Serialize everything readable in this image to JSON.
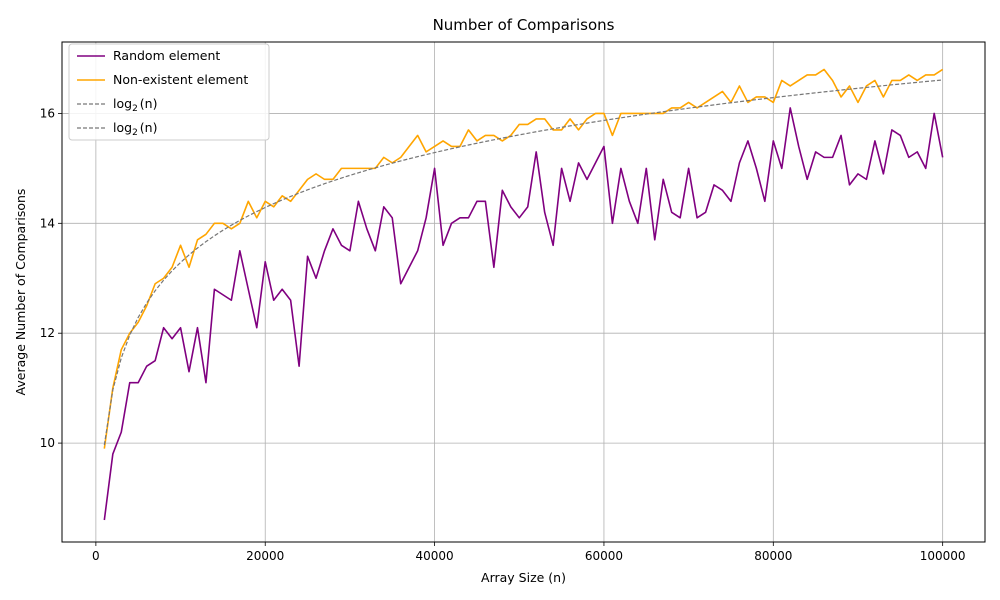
{
  "chart_data": {
    "type": "line",
    "title": "Number of Comparisons",
    "xlabel": "Array Size (n)",
    "ylabel": "Average Number of Comparisons",
    "xlim": [
      -4000,
      105000
    ],
    "ylim": [
      8.2,
      17.3
    ],
    "xticks": [
      0,
      20000,
      40000,
      60000,
      80000,
      100000
    ],
    "yticks": [
      10,
      12,
      14,
      16
    ],
    "grid": true,
    "legend_position": "top-left",
    "legend": [
      {
        "label": "Random element",
        "color": "#800080",
        "style": "solid"
      },
      {
        "label": "Non-existent element",
        "color": "#ffa500",
        "style": "solid"
      },
      {
        "label": "log",
        "sub": "2",
        "suffix": "(n)",
        "color": "#777777",
        "style": "dashed"
      },
      {
        "label": "log",
        "sub": "2",
        "suffix": "(n)",
        "color": "#777777",
        "style": "dashed"
      }
    ],
    "x": {
      "start": 1000,
      "step": 1000,
      "count": 100
    },
    "series": [
      {
        "name": "Random element",
        "color": "#800080",
        "style": "solid",
        "values": [
          8.6,
          9.8,
          10.2,
          11.1,
          11.1,
          11.4,
          11.5,
          12.1,
          11.9,
          12.1,
          11.3,
          12.1,
          11.1,
          12.8,
          12.7,
          12.6,
          13.5,
          12.8,
          12.1,
          13.3,
          12.6,
          12.8,
          12.6,
          11.4,
          13.4,
          13.0,
          13.5,
          13.9,
          13.6,
          13.5,
          14.4,
          13.9,
          13.5,
          14.3,
          14.1,
          12.9,
          13.2,
          13.5,
          14.1,
          15.0,
          13.6,
          14.0,
          14.1,
          14.1,
          14.4,
          14.4,
          13.2,
          14.6,
          14.3,
          14.1,
          14.3,
          15.3,
          14.2,
          13.6,
          15.0,
          14.4,
          15.1,
          14.8,
          15.1,
          15.4,
          14.0,
          15.0,
          14.4,
          14.0,
          15.0,
          13.7,
          14.8,
          14.2,
          14.1,
          15.0,
          14.1,
          14.2,
          14.7,
          14.6,
          14.4,
          15.1,
          15.5,
          15.0,
          14.4,
          15.5,
          15.0,
          16.1,
          15.4,
          14.8,
          15.3,
          15.2,
          15.2,
          15.6,
          14.7,
          14.9,
          14.8,
          15.5,
          14.9,
          15.7,
          15.6,
          15.2,
          15.3,
          15.0,
          16.0,
          15.2
        ]
      },
      {
        "name": "Non-existent element",
        "color": "#ffa500",
        "style": "solid",
        "values": [
          9.9,
          11.0,
          11.7,
          12.0,
          12.2,
          12.5,
          12.9,
          13.0,
          13.2,
          13.6,
          13.2,
          13.7,
          13.8,
          14.0,
          14.0,
          13.9,
          14.0,
          14.4,
          14.1,
          14.4,
          14.3,
          14.5,
          14.4,
          14.6,
          14.8,
          14.9,
          14.8,
          14.8,
          15.0,
          15.0,
          15.0,
          15.0,
          15.0,
          15.2,
          15.1,
          15.2,
          15.4,
          15.6,
          15.3,
          15.4,
          15.5,
          15.4,
          15.4,
          15.7,
          15.5,
          15.6,
          15.6,
          15.5,
          15.6,
          15.8,
          15.8,
          15.9,
          15.9,
          15.7,
          15.7,
          15.9,
          15.7,
          15.9,
          16.0,
          16.0,
          15.6,
          16.0,
          16.0,
          16.0,
          16.0,
          16.0,
          16.0,
          16.1,
          16.1,
          16.2,
          16.1,
          16.2,
          16.3,
          16.4,
          16.2,
          16.5,
          16.2,
          16.3,
          16.3,
          16.2,
          16.6,
          16.5,
          16.6,
          16.7,
          16.7,
          16.8,
          16.6,
          16.3,
          16.5,
          16.2,
          16.5,
          16.6,
          16.3,
          16.6,
          16.6,
          16.7,
          16.6,
          16.7,
          16.7,
          16.8
        ]
      },
      {
        "name": "log2(n)",
        "color": "#777777",
        "style": "dashed",
        "function": "log2"
      }
    ]
  }
}
